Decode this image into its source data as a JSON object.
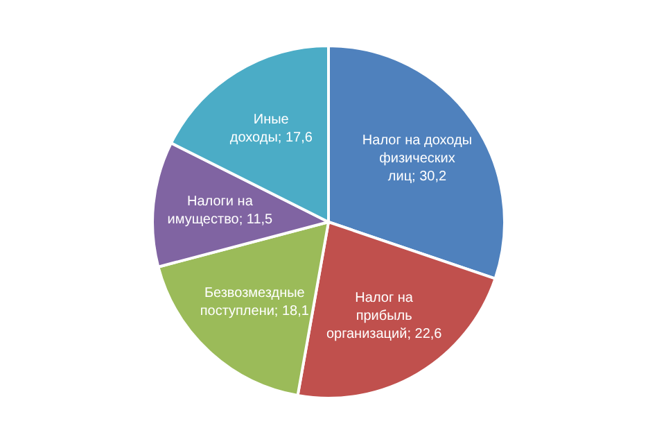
{
  "chart_data": {
    "type": "pie",
    "categories": [
      "Налог на доходы физических лиц",
      "Налог на прибыль организаций",
      "Безвозмездные поступлени",
      "Налоги на имущество",
      "Иные доходы"
    ],
    "values": [
      30.2,
      22.6,
      18.1,
      11.5,
      17.6
    ],
    "value_labels": [
      "30,2",
      "22,6",
      "18,1",
      "11,5",
      "17,6"
    ],
    "colors": [
      "#4f81bd",
      "#c0504d",
      "#9bbb59",
      "#8064a2",
      "#4bacc6"
    ],
    "legend": false
  }
}
